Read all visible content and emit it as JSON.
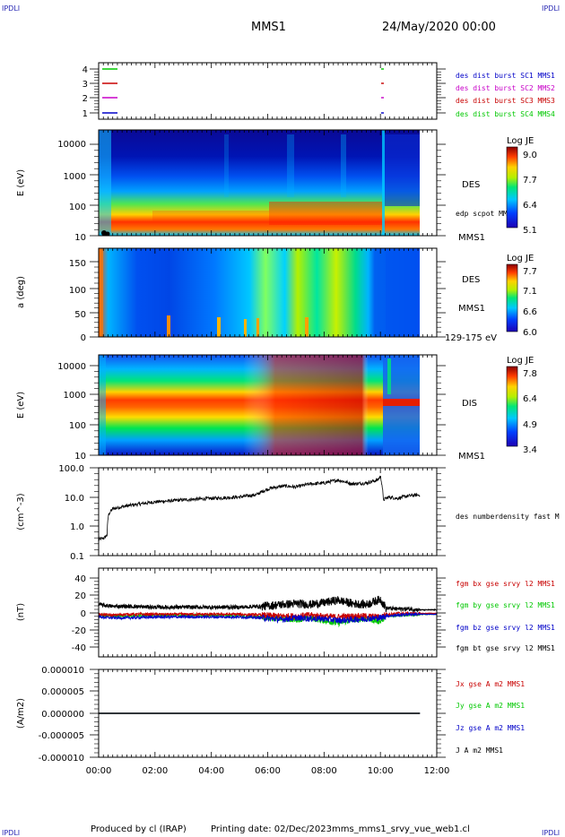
{
  "header": {
    "corner_label": "IPDLI",
    "title": "MMS1",
    "datetime": "24/May/2020 00:00"
  },
  "footer": {
    "produced_by": "Produced by cl (IRAP)",
    "printing_date": "Printing date: 02/Dec/2023",
    "filename": "mms_mms1_srvy_vue_web1.cl"
  },
  "time_axis": {
    "ticks": [
      "00:00",
      "02:00",
      "04:00",
      "06:00",
      "08:00",
      "10:00",
      "12:00"
    ],
    "range_hours": [
      0,
      12
    ],
    "data_end_hours": 11.4,
    "gap_hours": 10.05
  },
  "colors": {
    "spacecraft": [
      "#0000c8",
      "#c800c8",
      "#c80000",
      "#00c800"
    ],
    "fgm": [
      "#c80000",
      "#00c800",
      "#0000c8",
      "#000000"
    ]
  },
  "panels": {
    "burst": {
      "yticks": [
        "1",
        "2",
        "3",
        "4"
      ],
      "legend": [
        "des dist burst SC1 MMS1",
        "des dist burst SC2 MMS2",
        "des dist burst SC3 MMS3",
        "des dist burst SC4 MMS4"
      ]
    },
    "des_energy": {
      "ylabel": "E (eV)",
      "yticks": [
        "10",
        "100",
        "1000",
        "10000"
      ],
      "instrument": "DES",
      "overlay": "edp scpot MMS1",
      "sc": "MMS1",
      "colorbar": {
        "title": "Log JE",
        "min": 5.1,
        "max": 9.0,
        "ticks": [
          "9.0",
          "7.7",
          "6.4",
          "5.1"
        ]
      }
    },
    "des_pitch": {
      "ylabel": "a (deg)",
      "yticks": [
        "0",
        "50",
        "100",
        "150"
      ],
      "instrument": "DES",
      "sc": "MMS1",
      "energy_range": "129-175 eV",
      "colorbar": {
        "title": "Log JE",
        "min": 6.0,
        "max": 7.7,
        "ticks": [
          "7.7",
          "7.1",
          "6.6",
          "6.0"
        ]
      }
    },
    "dis_energy": {
      "ylabel": "E (eV)",
      "yticks": [
        "10",
        "100",
        "1000",
        "10000"
      ],
      "instrument": "DIS",
      "sc": "MMS1",
      "colorbar": {
        "title": "Log JE",
        "min": 3.4,
        "max": 7.8,
        "ticks": [
          "7.8",
          "6.4",
          "4.9",
          "3.4"
        ]
      }
    },
    "density": {
      "ylabel": "(cm^-3)",
      "yticks": [
        "0.1",
        "1.0",
        "10.0",
        "100.0"
      ],
      "legend": "des numberdensity fast M"
    },
    "fgm": {
      "ylabel": "(nT)",
      "yticks": [
        "-40",
        "-20",
        "0",
        "20",
        "40"
      ],
      "legend": [
        "fgm bx gse srvy l2 MMS1",
        "fgm by gse srvy l2 MMS1",
        "fgm bz gse srvy l2 MMS1",
        "fgm bt gse srvy l2 MMS1"
      ]
    },
    "current": {
      "ylabel": "(A/m2)",
      "yticks": [
        "-0.000010",
        "-0.000005",
        "0.000000",
        "0.000005",
        "0.000010"
      ],
      "legend": [
        "Jx gse A m2 MMS1",
        "Jy gse A m2 MMS1",
        "Jz gse A m2 MMS1",
        "J A m2 MMS1"
      ]
    }
  },
  "chart_data": [
    {
      "type": "line",
      "title": "",
      "ylabel": "(cm^-3)",
      "yscale": "log",
      "ylim": [
        0.1,
        100
      ],
      "series": [
        {
          "name": "des numberdensity fast M",
          "x": [
            0.0,
            0.2,
            0.3,
            0.35,
            0.5,
            1.0,
            2.0,
            3.0,
            4.0,
            5.0,
            5.6,
            5.9,
            6.1,
            6.6,
            7.0,
            7.5,
            8.0,
            8.5,
            9.0,
            9.5,
            9.9,
            10.0,
            10.1,
            10.3,
            10.6,
            11.0,
            11.4
          ],
          "y": [
            0.35,
            0.4,
            0.5,
            2.5,
            4.0,
            5.0,
            6.8,
            8.0,
            9.0,
            10.0,
            12.0,
            17.0,
            20.0,
            24.0,
            22.0,
            28.0,
            30.0,
            38.0,
            28.0,
            30.0,
            38.0,
            50.0,
            8.0,
            10.0,
            9.0,
            11.0,
            12.0
          ]
        }
      ]
    },
    {
      "type": "line",
      "title": "",
      "ylabel": "(nT)",
      "ylim": [
        -50,
        50
      ],
      "x": [
        0.0,
        0.5,
        1.0,
        2.0,
        3.0,
        4.0,
        5.0,
        5.8,
        6.5,
        7.0,
        7.5,
        8.0,
        8.5,
        9.0,
        9.5,
        10.0,
        10.2,
        10.6,
        11.0,
        11.4,
        12.0
      ],
      "series": [
        {
          "name": "fgm bx gse srvy l2 MMS1",
          "values": [
            -2,
            -3,
            -2,
            -2,
            -2,
            -2,
            -2,
            -3,
            -4,
            -4,
            -3,
            -4,
            -5,
            -4,
            -4,
            -5,
            -2,
            -1,
            -1,
            -1,
            -1
          ]
        },
        {
          "name": "fgm by gse srvy l2 MMS1",
          "values": [
            -3,
            -4,
            -4,
            -3,
            -3,
            -3,
            -4,
            -5,
            -7,
            -8,
            -6,
            -9,
            -12,
            -8,
            -7,
            -10,
            -4,
            -3,
            -3,
            -2,
            -2
          ]
        },
        {
          "name": "fgm bz gse srvy l2 MMS1",
          "values": [
            -5,
            -6,
            -6,
            -5,
            -5,
            -5,
            -5,
            -6,
            -8,
            -6,
            -7,
            -7,
            -9,
            -8,
            -7,
            -6,
            -4,
            -3,
            -2,
            -2,
            -2
          ]
        },
        {
          "name": "fgm bt gse srvy l2 MMS1",
          "values": [
            9,
            7,
            7,
            6,
            6,
            6,
            6,
            7,
            9,
            10,
            9,
            11,
            14,
            10,
            9,
            15,
            5,
            4,
            4,
            3,
            3
          ]
        }
      ]
    },
    {
      "type": "line",
      "title": "",
      "ylabel": "(A/m2)",
      "ylim": [
        -1e-05,
        1e-05
      ],
      "x": [
        0,
        2,
        4,
        6,
        8,
        10,
        11.4
      ],
      "series": [
        {
          "name": "Jx gse A m2 MMS1",
          "values": [
            0,
            0,
            0,
            0,
            0,
            0,
            0
          ]
        },
        {
          "name": "Jy gse A m2 MMS1",
          "values": [
            0,
            0,
            0,
            0,
            0,
            0,
            0
          ]
        },
        {
          "name": "Jz gse A m2 MMS1",
          "values": [
            0,
            0,
            0,
            0,
            0,
            0,
            0
          ]
        },
        {
          "name": "J A m2 MMS1",
          "values": [
            0,
            0,
            0,
            0,
            0,
            0,
            0
          ]
        }
      ]
    }
  ]
}
